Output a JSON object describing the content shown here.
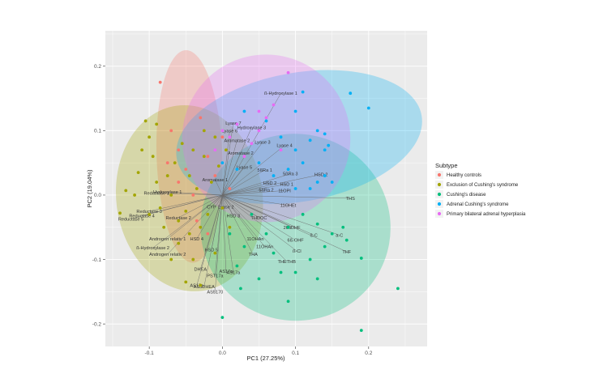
{
  "chart_data": {
    "type": "scatter",
    "title": "",
    "xlabel": "PC1 (27.25%)",
    "ylabel": "PC2 (19.04%)",
    "xlim": [
      -0.16,
      0.28
    ],
    "ylim": [
      -0.235,
      0.255
    ],
    "x_ticks": [
      -0.1,
      0.0,
      0.1,
      0.2
    ],
    "x_tick_labels": [
      "-0.1",
      "0.0",
      "0.1",
      "0.2"
    ],
    "y_ticks": [
      -0.2,
      -0.1,
      0.0,
      0.1,
      0.2
    ],
    "y_tick_labels": [
      "-0.2",
      "-0.1",
      "0.0",
      "0.1",
      "0.2"
    ],
    "grid": true,
    "legend": {
      "title": "Subtype",
      "position": "right",
      "entries": [
        {
          "name": "Healthy controls",
          "color": "#F8766D"
        },
        {
          "name": "Exclusion of Cushing's syndrome",
          "color": "#A3A500"
        },
        {
          "name": "Cushing's disease",
          "color": "#00BF7D"
        },
        {
          "name": "Adrenal Cushing's syndrome",
          "color": "#00B0F6"
        },
        {
          "name": "Primary bilateral adrenal hyperplasia",
          "color": "#E76BF3"
        }
      ]
    },
    "ellipses": [
      {
        "group": "Healthy controls",
        "center": [
          -0.045,
          0.06
        ],
        "radii": [
          0.045,
          0.165
        ],
        "angle_deg": 2
      },
      {
        "group": "Exclusion of Cushing's syndrome",
        "center": [
          -0.045,
          -0.005
        ],
        "radii": [
          0.1,
          0.145
        ],
        "angle_deg": 8
      },
      {
        "group": "Cushing's disease",
        "center": [
          0.1,
          -0.05
        ],
        "radii": [
          0.13,
          0.145
        ],
        "angle_deg": -10
      },
      {
        "group": "Adrenal Cushing's syndrome",
        "center": [
          0.105,
          0.09
        ],
        "radii": [
          0.17,
          0.1
        ],
        "angle_deg": 10
      },
      {
        "group": "Primary bilateral adrenal hyperplasia",
        "center": [
          0.06,
          0.088
        ],
        "radii": [
          0.115,
          0.13
        ],
        "angle_deg": -15
      }
    ],
    "series": [
      {
        "name": "Healthy controls",
        "points": [
          [
            -0.085,
            0.175
          ],
          [
            -0.07,
            0.1
          ],
          [
            -0.06,
            0.07
          ],
          [
            -0.05,
            0.04
          ],
          [
            -0.03,
            0.12
          ],
          [
            -0.02,
            0.06
          ],
          [
            -0.04,
            0.0
          ],
          [
            -0.01,
            0.03
          ],
          [
            -0.06,
            0.02
          ],
          [
            0.0,
            0.09
          ],
          [
            -0.035,
            -0.04
          ],
          [
            -0.02,
            -0.06
          ],
          [
            0.01,
            0.01
          ],
          [
            -0.075,
            0.05
          ]
        ]
      },
      {
        "name": "Exclusion of Cushing's syndrome",
        "points": [
          [
            -0.14,
            -0.028
          ],
          [
            -0.132,
            0.007
          ],
          [
            -0.115,
            0.035
          ],
          [
            -0.11,
            0.07
          ],
          [
            -0.1,
            0.09
          ],
          [
            -0.105,
            0.115
          ],
          [
            -0.095,
            0.06
          ],
          [
            -0.09,
            0.02
          ],
          [
            -0.085,
            -0.02
          ],
          [
            -0.08,
            -0.05
          ],
          [
            -0.07,
            0.0
          ],
          [
            -0.065,
            0.05
          ],
          [
            -0.06,
            -0.075
          ],
          [
            -0.055,
            0.08
          ],
          [
            -0.05,
            -0.025
          ],
          [
            -0.045,
            0.03
          ],
          [
            -0.04,
            -0.1
          ],
          [
            -0.035,
            0.01
          ],
          [
            -0.03,
            -0.05
          ],
          [
            -0.025,
            0.06
          ],
          [
            -0.02,
            -0.03
          ],
          [
            -0.015,
            0.02
          ],
          [
            -0.01,
            -0.09
          ],
          [
            -0.005,
            0.045
          ],
          [
            0.0,
            -0.02
          ],
          [
            0.005,
            0.07
          ],
          [
            -0.07,
            -0.1
          ],
          [
            -0.05,
            -0.135
          ],
          [
            -0.03,
            -0.14
          ],
          [
            -0.09,
            0.11
          ],
          [
            -0.12,
            0.0
          ],
          [
            -0.075,
            0.03
          ],
          [
            -0.06,
            -0.04
          ],
          [
            -0.025,
            0.1
          ],
          [
            -0.045,
            -0.06
          ],
          [
            -0.01,
            0.09
          ],
          [
            0.01,
            -0.05
          ],
          [
            -0.1,
            -0.03
          ],
          [
            -0.04,
            0.07
          ]
        ]
      },
      {
        "name": "Cushing's disease",
        "points": [
          [
            0.24,
            -0.145
          ],
          [
            0.19,
            -0.21
          ],
          [
            0.19,
            -0.098
          ],
          [
            0.17,
            -0.07
          ],
          [
            0.165,
            -0.05
          ],
          [
            0.14,
            -0.08
          ],
          [
            0.13,
            -0.045
          ],
          [
            0.12,
            -0.1
          ],
          [
            0.1,
            -0.12
          ],
          [
            0.09,
            -0.165
          ],
          [
            0.08,
            -0.12
          ],
          [
            0.07,
            -0.09
          ],
          [
            0.06,
            -0.06
          ],
          [
            0.05,
            -0.13
          ],
          [
            0.03,
            -0.08
          ],
          [
            0.02,
            -0.11
          ],
          [
            0.01,
            -0.06
          ],
          [
            0.0,
            -0.19
          ],
          [
            0.11,
            -0.03
          ],
          [
            0.09,
            -0.05
          ],
          [
            0.04,
            -0.03
          ],
          [
            0.13,
            -0.13
          ],
          [
            0.15,
            -0.06
          ],
          [
            0.025,
            -0.145
          ]
        ]
      },
      {
        "name": "Adrenal Cushing's syndrome",
        "points": [
          [
            0.2,
            0.135
          ],
          [
            0.175,
            0.158
          ],
          [
            0.14,
            0.095
          ],
          [
            0.145,
            0.077
          ],
          [
            0.14,
            0.07
          ],
          [
            0.13,
            0.1
          ],
          [
            0.11,
            0.16
          ],
          [
            0.1,
            0.13
          ],
          [
            0.12,
            0.085
          ],
          [
            0.1,
            0.07
          ],
          [
            0.08,
            0.09
          ],
          [
            0.06,
            0.115
          ],
          [
            0.03,
            0.13
          ],
          [
            0.02,
            0.04
          ],
          [
            0.05,
            0.05
          ],
          [
            0.13,
            0.02
          ],
          [
            0.14,
            0.03
          ],
          [
            0.1,
            0.01
          ],
          [
            0.12,
            0.01
          ],
          [
            0.0,
            0.05
          ],
          [
            0.15,
            0.02
          ],
          [
            0.07,
            0.03
          ],
          [
            0.11,
            0.05
          ],
          [
            0.09,
            0.04
          ]
        ]
      },
      {
        "name": "Primary bilateral adrenal hyperplasia",
        "points": [
          [
            0.09,
            0.19
          ],
          [
            0.07,
            0.14
          ],
          [
            0.06,
            0.12
          ],
          [
            0.05,
            0.1
          ],
          [
            0.04,
            0.08
          ],
          [
            0.03,
            0.06
          ],
          [
            0.02,
            0.11
          ],
          [
            0.08,
            0.07
          ],
          [
            0.0,
            0.1
          ],
          [
            -0.01,
            0.07
          ],
          [
            0.01,
            0.09
          ],
          [
            0.05,
            0.13
          ]
        ]
      }
    ],
    "loadings": [
      {
        "label": "ß-Hydroxylase 1",
        "x": 0.08,
        "y": 0.158
      },
      {
        "label": "Lyase 7",
        "x": 0.015,
        "y": 0.112
      },
      {
        "label": "Lyase 6",
        "x": 0.01,
        "y": 0.1
      },
      {
        "label": "Hydroxylase 3",
        "x": 0.04,
        "y": 0.105
      },
      {
        "label": "Aromatase 2",
        "x": 0.02,
        "y": 0.085
      },
      {
        "label": "Lyase 3",
        "x": 0.055,
        "y": 0.082
      },
      {
        "label": "Lyase 4",
        "x": 0.085,
        "y": 0.077
      },
      {
        "label": "Lyase 5",
        "x": 0.03,
        "y": 0.043
      },
      {
        "label": "5ßRa 1",
        "x": 0.058,
        "y": 0.039
      },
      {
        "label": "5ßRa 3",
        "x": 0.093,
        "y": 0.033
      },
      {
        "label": "HSD 2",
        "x": 0.135,
        "y": 0.032
      },
      {
        "label": "HSD 2",
        "x": 0.065,
        "y": 0.019
      },
      {
        "label": "HSD 1",
        "x": 0.088,
        "y": 0.017
      },
      {
        "label": "5ßRa 2",
        "x": 0.06,
        "y": 0.008
      },
      {
        "label": "11OPI",
        "x": 0.085,
        "y": 0.007
      },
      {
        "label": "Aromatase 1",
        "x": -0.01,
        "y": 0.024
      },
      {
        "label": "THS",
        "x": 0.175,
        "y": -0.005
      },
      {
        "label": "11OHEt",
        "x": 0.09,
        "y": -0.016
      },
      {
        "label": "THDOC",
        "x": 0.05,
        "y": -0.035
      },
      {
        "label": "20aDHF",
        "x": 0.095,
        "y": -0.05
      },
      {
        "label": "ß-C",
        "x": 0.125,
        "y": -0.062
      },
      {
        "label": "a-C",
        "x": 0.16,
        "y": -0.062
      },
      {
        "label": "6ß-OHF",
        "x": 0.1,
        "y": -0.07
      },
      {
        "label": "11OHAn",
        "x": 0.045,
        "y": -0.068
      },
      {
        "label": "11OHAn",
        "x": 0.058,
        "y": -0.08
      },
      {
        "label": "THF",
        "x": 0.17,
        "y": -0.088
      },
      {
        "label": "ß-Cl",
        "x": 0.102,
        "y": -0.087
      },
      {
        "label": "THETHB",
        "x": 0.088,
        "y": -0.103
      },
      {
        "label": "THA",
        "x": 0.042,
        "y": -0.092
      },
      {
        "label": "Reductase 1",
        "x": -0.09,
        "y": 0.003
      },
      {
        "label": "Reductase 2",
        "x": -0.06,
        "y": -0.035
      },
      {
        "label": "Reductase 3",
        "x": -0.1,
        "y": -0.025
      },
      {
        "label": "Reductase 4",
        "x": -0.11,
        "y": -0.032
      },
      {
        "label": "Reductase 5",
        "x": -0.125,
        "y": -0.037
      },
      {
        "label": "Hydroxylase 1",
        "x": -0.075,
        "y": 0.005
      },
      {
        "label": "Androgen relativ 1",
        "x": -0.075,
        "y": -0.068
      },
      {
        "label": "Androgen relativ 2",
        "x": -0.075,
        "y": -0.092
      },
      {
        "label": "ß-Hydroxylase 2",
        "x": -0.095,
        "y": -0.082
      },
      {
        "label": "HSD 4",
        "x": -0.035,
        "y": -0.068
      },
      {
        "label": "HSD 5",
        "x": -0.015,
        "y": -0.085
      },
      {
        "label": "DHEA",
        "x": -0.03,
        "y": -0.115
      },
      {
        "label": "PST17a",
        "x": -0.01,
        "y": -0.125
      },
      {
        "label": "AS17a",
        "x": 0.005,
        "y": -0.118
      },
      {
        "label": "AS17a",
        "x": 0.015,
        "y": -0.12
      },
      {
        "label": "AS17a",
        "x": -0.035,
        "y": -0.14
      },
      {
        "label": "AS5DHEA",
        "x": -0.025,
        "y": -0.142
      },
      {
        "label": "AS5170",
        "x": -0.01,
        "y": -0.15
      },
      {
        "label": "CYP",
        "x": -0.015,
        "y": -0.018
      },
      {
        "label": "Lyase 2",
        "x": 0.005,
        "y": -0.018
      },
      {
        "label": "Aromatase 2",
        "x": 0.025,
        "y": 0.065
      },
      {
        "label": "HSD 3",
        "x": 0.015,
        "y": -0.032
      }
    ]
  }
}
